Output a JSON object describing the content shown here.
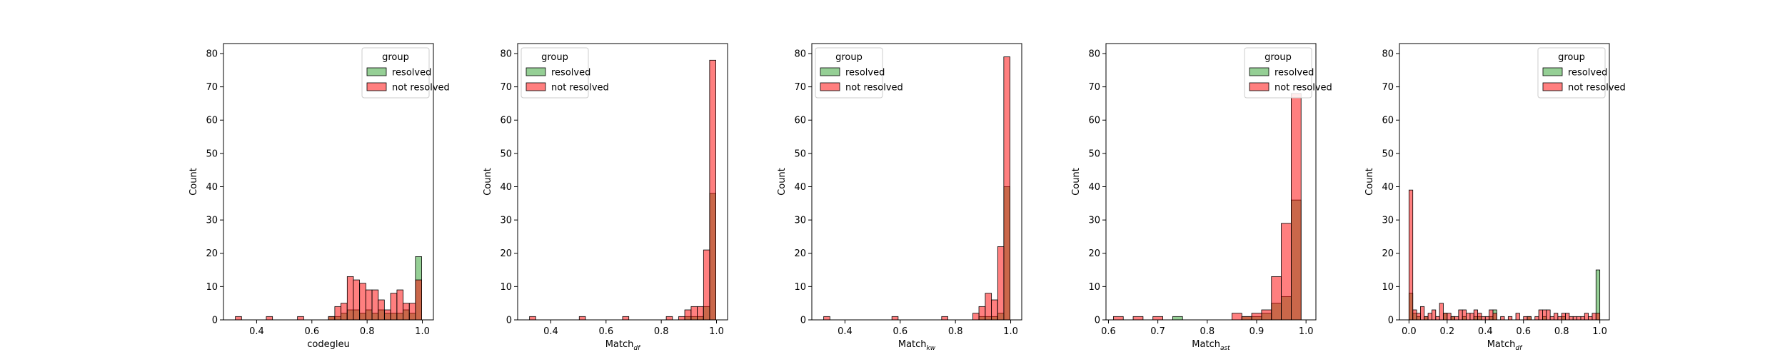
{
  "colors": {
    "resolved": "#2ca02c",
    "not_resolved": "#ff0000",
    "overlap": "#7f7f00"
  },
  "chart_data": [
    {
      "type": "histogram",
      "xlabel": "codegleu",
      "xlabel_subscript": "",
      "ylabel": "Count",
      "xlim": [
        0.28,
        1.04
      ],
      "ylim": [
        0,
        83
      ],
      "xticks": [
        0.4,
        0.6,
        0.8,
        1.0
      ],
      "yticks": [
        0,
        10,
        20,
        30,
        40,
        50,
        60,
        70,
        80
      ],
      "legend": {
        "title": "group",
        "placement": "top-right",
        "items": [
          "resolved",
          "not resolved"
        ]
      },
      "bin_width": 0.0225,
      "series": [
        {
          "name": "resolved",
          "color_key": "resolved",
          "x": [
            0.66,
            0.683,
            0.705,
            0.728,
            0.75,
            0.773,
            0.795,
            0.818,
            0.84,
            0.863,
            0.885,
            0.908,
            0.93,
            0.953,
            0.975
          ],
          "y": [
            1,
            1,
            2,
            3,
            3,
            2,
            3,
            2,
            3,
            2,
            2,
            2,
            3,
            2,
            19
          ]
        },
        {
          "name": "not resolved",
          "color_key": "not_resolved",
          "x": [
            0.323,
            0.435,
            0.548,
            0.66,
            0.683,
            0.705,
            0.728,
            0.75,
            0.773,
            0.795,
            0.818,
            0.84,
            0.863,
            0.885,
            0.908,
            0.93,
            0.953,
            0.975
          ],
          "y": [
            1,
            1,
            1,
            1,
            4,
            5,
            13,
            12,
            11,
            9,
            9,
            6,
            3,
            8,
            9,
            5,
            5,
            12
          ]
        }
      ]
    },
    {
      "type": "histogram",
      "xlabel": "Match",
      "xlabel_subscript": "df",
      "ylabel": "Count",
      "xlim": [
        0.28,
        1.04
      ],
      "ylim": [
        0,
        83
      ],
      "xticks": [
        0.4,
        0.6,
        0.8,
        1.0
      ],
      "yticks": [
        0,
        10,
        20,
        30,
        40,
        50,
        60,
        70,
        80
      ],
      "legend": {
        "title": "group",
        "placement": "top-left",
        "items": [
          "resolved",
          "not resolved"
        ]
      },
      "bin_width": 0.0225,
      "series": [
        {
          "name": "resolved",
          "color_key": "resolved",
          "x": [
            0.885,
            0.908,
            0.93,
            0.953,
            0.975
          ],
          "y": [
            1,
            1,
            1,
            4,
            38
          ]
        },
        {
          "name": "not resolved",
          "color_key": "not_resolved",
          "x": [
            0.323,
            0.503,
            0.66,
            0.818,
            0.863,
            0.885,
            0.908,
            0.93,
            0.953,
            0.975
          ],
          "y": [
            1,
            1,
            1,
            1,
            1,
            3,
            4,
            4,
            21,
            78
          ]
        }
      ]
    },
    {
      "type": "histogram",
      "xlabel": "Match",
      "xlabel_subscript": "kw",
      "ylabel": "Count",
      "xlim": [
        0.28,
        1.04
      ],
      "ylim": [
        0,
        83
      ],
      "xticks": [
        0.4,
        0.6,
        0.8,
        1.0
      ],
      "yticks": [
        0,
        10,
        20,
        30,
        40,
        50,
        60,
        70,
        80
      ],
      "legend": {
        "title": "group",
        "placement": "top-left",
        "items": [
          "resolved",
          "not resolved"
        ]
      },
      "bin_width": 0.0225,
      "series": [
        {
          "name": "resolved",
          "color_key": "resolved",
          "x": [
            0.885,
            0.908,
            0.93,
            0.953,
            0.975
          ],
          "y": [
            1,
            1,
            1,
            2,
            40
          ]
        },
        {
          "name": "not resolved",
          "color_key": "not_resolved",
          "x": [
            0.323,
            0.57,
            0.75,
            0.863,
            0.885,
            0.908,
            0.93,
            0.953,
            0.975
          ],
          "y": [
            1,
            1,
            1,
            2,
            4,
            8,
            6,
            22,
            79
          ]
        }
      ]
    },
    {
      "type": "histogram",
      "xlabel": "Match",
      "xlabel_subscript": "ast",
      "ylabel": "Count",
      "xlim": [
        0.595,
        1.02
      ],
      "ylim": [
        0,
        83
      ],
      "xticks": [
        0.6,
        0.7,
        0.8,
        0.9,
        1.0
      ],
      "yticks": [
        0,
        10,
        20,
        30,
        40,
        50,
        60,
        70,
        80
      ],
      "legend": {
        "title": "group",
        "placement": "top-right",
        "items": [
          "resolved",
          "not resolved"
        ]
      },
      "bin_width": 0.02,
      "series": [
        {
          "name": "resolved",
          "color_key": "resolved",
          "x": [
            0.73,
            0.87,
            0.89,
            0.91,
            0.93,
            0.95,
            0.97
          ],
          "y": [
            1,
            1,
            1,
            2,
            5,
            7,
            36
          ]
        },
        {
          "name": "not resolved",
          "color_key": "not_resolved",
          "x": [
            0.61,
            0.65,
            0.69,
            0.85,
            0.87,
            0.89,
            0.91,
            0.93,
            0.95,
            0.97
          ],
          "y": [
            1,
            1,
            1,
            2,
            1,
            2,
            3,
            13,
            29,
            68
          ]
        }
      ]
    },
    {
      "type": "histogram",
      "xlabel": "Match",
      "xlabel_subscript": "df",
      "ylabel": "Count",
      "xlim": [
        -0.05,
        1.05
      ],
      "ylim": [
        0,
        83
      ],
      "xticks": [
        0.0,
        0.2,
        0.4,
        0.6,
        0.8,
        1.0
      ],
      "yticks": [
        0,
        10,
        20,
        30,
        40,
        50,
        60,
        70,
        80
      ],
      "legend": {
        "title": "group",
        "placement": "top-right",
        "items": [
          "resolved",
          "not resolved"
        ]
      },
      "bin_width": 0.02,
      "series": [
        {
          "name": "resolved",
          "color_key": "resolved",
          "x": [
            0.0,
            0.02,
            0.04,
            0.08,
            0.18,
            0.22,
            0.28,
            0.34,
            0.36,
            0.42,
            0.44,
            0.62,
            0.7,
            0.8,
            0.98
          ],
          "y": [
            8,
            2,
            1,
            1,
            2,
            1,
            1,
            1,
            1,
            1,
            3,
            1,
            1,
            1,
            15
          ]
        },
        {
          "name": "not resolved",
          "color_key": "not_resolved",
          "x": [
            0.0,
            0.02,
            0.04,
            0.06,
            0.08,
            0.1,
            0.12,
            0.14,
            0.16,
            0.18,
            0.2,
            0.22,
            0.24,
            0.26,
            0.28,
            0.3,
            0.32,
            0.34,
            0.36,
            0.38,
            0.4,
            0.42,
            0.44,
            0.48,
            0.52,
            0.56,
            0.6,
            0.62,
            0.66,
            0.68,
            0.7,
            0.72,
            0.74,
            0.76,
            0.78,
            0.8,
            0.82,
            0.84,
            0.86,
            0.88,
            0.9,
            0.92,
            0.94,
            0.96,
            0.98
          ],
          "y": [
            39,
            3,
            2,
            4,
            1,
            2,
            3,
            1,
            5,
            2,
            2,
            1,
            1,
            3,
            3,
            2,
            2,
            3,
            2,
            1,
            1,
            3,
            2,
            1,
            1,
            2,
            1,
            1,
            1,
            3,
            3,
            3,
            1,
            2,
            1,
            2,
            2,
            1,
            1,
            1,
            1,
            2,
            1,
            2,
            2
          ]
        }
      ]
    }
  ]
}
